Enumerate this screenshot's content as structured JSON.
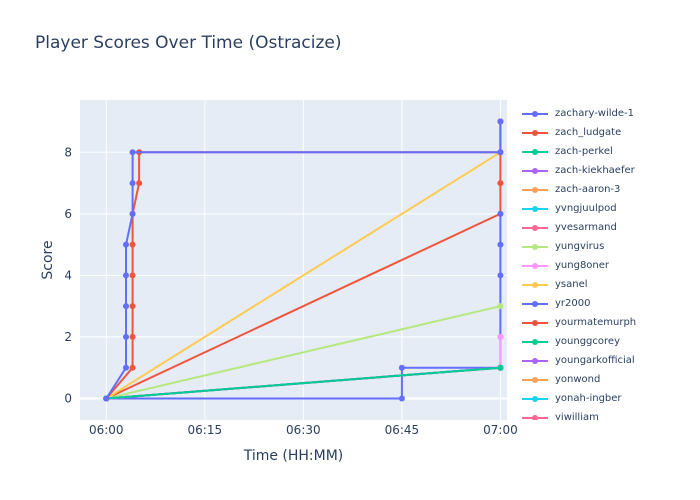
{
  "chart_data": {
    "type": "line",
    "title": "Player Scores Over Time (Ostracize)",
    "xlabel": "Time (HH:MM)",
    "ylabel": "Score",
    "xlim": [
      "05:56",
      "07:01"
    ],
    "ylim": [
      -0.7,
      9.7
    ],
    "xticks": [
      "06:00",
      "06:15",
      "06:30",
      "06:45",
      "07:00"
    ],
    "yticks": [
      0,
      2,
      4,
      6,
      8
    ],
    "grid": true,
    "legend": "right",
    "series": [
      {
        "name": "zachary-wilde-1",
        "color": "#636efa",
        "points": [
          [
            "06:00",
            0
          ],
          [
            "06:03",
            1
          ],
          [
            "06:03",
            2
          ],
          [
            "06:03",
            3
          ],
          [
            "06:03",
            4
          ],
          [
            "06:03",
            5
          ],
          [
            "06:04",
            6
          ],
          [
            "06:04",
            7
          ],
          [
            "06:04",
            8
          ],
          [
            "07:00",
            8
          ],
          [
            "07:00",
            9
          ]
        ]
      },
      {
        "name": "zach_ludgate",
        "color": "#ef553b",
        "points": [
          [
            "06:00",
            0
          ],
          [
            "06:04",
            1
          ],
          [
            "06:04",
            2
          ],
          [
            "06:04",
            3
          ],
          [
            "06:04",
            4
          ],
          [
            "06:04",
            5
          ],
          [
            "06:04",
            6
          ],
          [
            "06:05",
            7
          ],
          [
            "06:05",
            8
          ],
          [
            "07:00",
            8
          ],
          [
            "07:00",
            9
          ]
        ]
      },
      {
        "name": "zach-perkel",
        "color": "#00cc96",
        "points": [
          [
            "06:00",
            0
          ],
          [
            "07:00",
            1
          ]
        ]
      },
      {
        "name": "zach-kiekhaefer",
        "color": "#ab63fa",
        "points": [
          [
            "06:00",
            0
          ],
          [
            "07:00",
            1
          ]
        ]
      },
      {
        "name": "zach-aaron-3",
        "color": "#ffa15a",
        "points": [
          [
            "06:00",
            0
          ],
          [
            "07:00",
            1
          ]
        ]
      },
      {
        "name": "yvngjuulpod",
        "color": "#19d3f3",
        "points": [
          [
            "06:00",
            0
          ],
          [
            "07:00",
            1
          ]
        ]
      },
      {
        "name": "yvesarmand",
        "color": "#ff6692",
        "points": [
          [
            "06:00",
            0
          ],
          [
            "07:00",
            1
          ]
        ]
      },
      {
        "name": "yungvirus",
        "color": "#b6e880",
        "points": [
          [
            "06:00",
            0
          ],
          [
            "07:00",
            3
          ]
        ]
      },
      {
        "name": "yung8oner",
        "color": "#ff97ff",
        "points": [
          [
            "06:00",
            0
          ],
          [
            "07:00",
            1
          ],
          [
            "07:00",
            2
          ]
        ]
      },
      {
        "name": "ysanel",
        "color": "#fecb52",
        "points": [
          [
            "06:00",
            0
          ],
          [
            "07:00",
            8
          ]
        ]
      },
      {
        "name": "yr2000",
        "color": "#636efa",
        "points": [
          [
            "06:00",
            0
          ],
          [
            "06:45",
            0
          ],
          [
            "06:45",
            1
          ],
          [
            "07:00",
            1
          ],
          [
            "07:00",
            2
          ],
          [
            "07:00",
            4
          ],
          [
            "07:00",
            5
          ],
          [
            "07:00",
            6
          ]
        ]
      },
      {
        "name": "yourmatemurph",
        "color": "#ef553b",
        "points": [
          [
            "06:00",
            0
          ],
          [
            "07:00",
            6
          ],
          [
            "07:00",
            7
          ],
          [
            "07:00",
            9
          ]
        ]
      },
      {
        "name": "younggcorey",
        "color": "#00cc96",
        "points": [
          [
            "06:00",
            0
          ],
          [
            "07:00",
            1
          ]
        ]
      },
      {
        "name": "youngarkofficial",
        "color": "#ab63fa",
        "points": [
          [
            "06:00",
            0
          ],
          [
            "07:00",
            1
          ]
        ]
      },
      {
        "name": "yonwond",
        "color": "#ffa15a",
        "points": [
          [
            "06:00",
            0
          ],
          [
            "07:00",
            1
          ]
        ]
      },
      {
        "name": "yonah-ingber",
        "color": "#19d3f3",
        "points": [
          [
            "06:00",
            0
          ],
          [
            "07:00",
            1
          ]
        ]
      },
      {
        "name": "yiwilliam",
        "color": "#ff6692",
        "points": [
          [
            "06:00",
            0
          ],
          [
            "07:00",
            1
          ]
        ]
      }
    ]
  }
}
